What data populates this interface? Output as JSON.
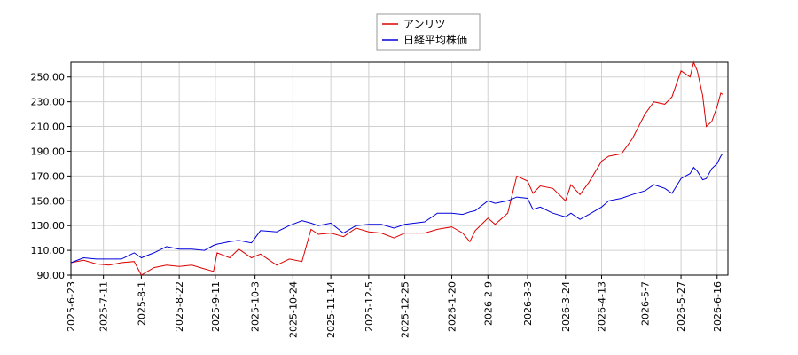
{
  "chart_data": {
    "type": "line",
    "x": [
      "2025-6-23",
      "2025-6-30",
      "2025-7-7",
      "2025-7-14",
      "2025-7-21",
      "2025-7-28",
      "2025-8-1",
      "2025-8-8",
      "2025-8-15",
      "2025-8-22",
      "2025-8-29",
      "2025-9-5",
      "2025-9-10",
      "2025-9-12",
      "2025-9-19",
      "2025-9-24",
      "2025-10-1",
      "2025-10-6",
      "2025-10-15",
      "2025-10-22",
      "2025-10-29",
      "2025-11-3",
      "2025-11-7",
      "2025-11-14",
      "2025-11-21",
      "2025-11-28",
      "2025-12-5",
      "2025-12-12",
      "2025-12-19",
      "2025-12-25",
      "2026-1-5",
      "2026-1-12",
      "2026-1-20",
      "2026-1-26",
      "2026-1-30",
      "2026-2-2",
      "2026-2-9",
      "2026-2-13",
      "2026-2-20",
      "2026-2-25",
      "2026-3-3",
      "2026-3-6",
      "2026-3-10",
      "2026-3-17",
      "2026-3-24",
      "2026-3-27",
      "2026-4-1",
      "2026-4-6",
      "2026-4-13",
      "2026-4-17",
      "2026-4-24",
      "2026-4-30",
      "2026-5-7",
      "2026-5-12",
      "2026-5-18",
      "2026-5-22",
      "2026-5-27",
      "2026-6-1",
      "2026-6-3",
      "2026-6-5",
      "2026-6-8",
      "2026-6-10",
      "2026-6-13",
      "2026-6-16",
      "2026-6-18",
      "2026-6-19"
    ],
    "series": [
      {
        "name": "アンリツ",
        "color": "#dd0000",
        "values": [
          100,
          102,
          99,
          98,
          100,
          101,
          90,
          96,
          98,
          97,
          98,
          95,
          93,
          108,
          104,
          111,
          104,
          107,
          98,
          103,
          101,
          127,
          123,
          124,
          121,
          128,
          125,
          124,
          120,
          124,
          124,
          127,
          129,
          124,
          117,
          126,
          136,
          131,
          140,
          170,
          166,
          156,
          162,
          160,
          150,
          163,
          155,
          165,
          182,
          186,
          188,
          200,
          220,
          230,
          228,
          234,
          255,
          250,
          262,
          255,
          235,
          210,
          214,
          226,
          237,
          236
        ]
      },
      {
        "name": "日経平均株価",
        "color": "#0000dd",
        "values": [
          100,
          104,
          103,
          103,
          103,
          108,
          104,
          108,
          113,
          111,
          111,
          110,
          114,
          115,
          117,
          118,
          116,
          126,
          125,
          130,
          134,
          132,
          130,
          132,
          124,
          130,
          131,
          131,
          128,
          131,
          133,
          140,
          140,
          139,
          141,
          142,
          150,
          148,
          150,
          153,
          152,
          143,
          145,
          140,
          137,
          140,
          135,
          139,
          145,
          150,
          152,
          155,
          158,
          163,
          160,
          156,
          168,
          172,
          177,
          174,
          167,
          168,
          176,
          180,
          186,
          188
        ]
      }
    ],
    "xlim": [
      "2025-6-23",
      "2026-6-22"
    ],
    "xticks": [
      "2025-6-23",
      "2025-7-11",
      "2025-8-1",
      "2025-8-22",
      "2025-9-11",
      "2025-10-3",
      "2025-10-24",
      "2025-11-14",
      "2025-12-5",
      "2025-12-25",
      "2026-1-20",
      "2026-2-9",
      "2026-3-3",
      "2026-3-24",
      "2026-4-13",
      "2026-5-7",
      "2026-5-27",
      "2026-6-16"
    ],
    "ylim": [
      90,
      262
    ],
    "yticks": [
      {
        "value": 90,
        "label": "90.00"
      },
      {
        "value": 110,
        "label": "110.00"
      },
      {
        "value": 130,
        "label": "130.00"
      },
      {
        "value": 150,
        "label": "150.00"
      },
      {
        "value": 170,
        "label": "170.00"
      },
      {
        "value": 190,
        "label": "190.00"
      },
      {
        "value": 210,
        "label": "210.00"
      },
      {
        "value": 230,
        "label": "230.00"
      },
      {
        "value": 250,
        "label": "250.00"
      }
    ],
    "grid": true,
    "legend": "top"
  }
}
